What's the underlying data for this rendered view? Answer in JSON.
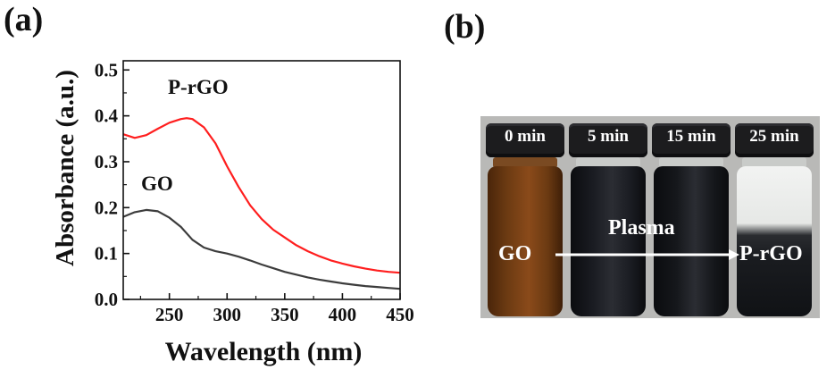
{
  "panel_a": {
    "label": "(a)",
    "chart_data": {
      "type": "line",
      "xlabel": "Wavelength (nm)",
      "ylabel": "Absorbance (a.u.)",
      "xlim": [
        210,
        450
      ],
      "ylim": [
        0,
        0.52
      ],
      "x_ticks": [
        "250",
        "300",
        "350",
        "400",
        "450"
      ],
      "y_ticks": [
        "0.0",
        "0.1",
        "0.2",
        "0.3",
        "0.4",
        "0.5"
      ],
      "grid": false,
      "series": [
        {
          "name": "P-rGO",
          "color": "#ff1e1e",
          "x": [
            210,
            220,
            230,
            240,
            250,
            260,
            265,
            270,
            280,
            290,
            300,
            310,
            320,
            330,
            340,
            350,
            360,
            370,
            380,
            390,
            400,
            410,
            420,
            430,
            440,
            450
          ],
          "y": [
            0.36,
            0.352,
            0.358,
            0.372,
            0.385,
            0.393,
            0.395,
            0.393,
            0.375,
            0.34,
            0.29,
            0.245,
            0.205,
            0.175,
            0.152,
            0.135,
            0.118,
            0.105,
            0.094,
            0.085,
            0.078,
            0.072,
            0.067,
            0.063,
            0.06,
            0.058
          ]
        },
        {
          "name": "GO",
          "color": "#3c3c3c",
          "x": [
            210,
            220,
            230,
            240,
            250,
            260,
            270,
            280,
            290,
            300,
            310,
            320,
            330,
            340,
            350,
            360,
            370,
            380,
            390,
            400,
            410,
            420,
            430,
            440,
            450
          ],
          "y": [
            0.18,
            0.19,
            0.195,
            0.192,
            0.178,
            0.158,
            0.13,
            0.113,
            0.105,
            0.1,
            0.093,
            0.085,
            0.076,
            0.068,
            0.06,
            0.054,
            0.048,
            0.043,
            0.039,
            0.035,
            0.032,
            0.029,
            0.027,
            0.025,
            0.023
          ]
        }
      ]
    }
  },
  "panel_b": {
    "label": "(b)",
    "vials": [
      {
        "time": "0 min",
        "liquid": "#6b3a12"
      },
      {
        "time": "5 min",
        "liquid": "#1a1c22"
      },
      {
        "time": "15 min",
        "liquid": "#15171b"
      },
      {
        "time": "25 min",
        "liquid": "#1a1c20"
      }
    ],
    "left_label": "GO",
    "arrow_label": "Plasma",
    "right_label": "P-rGO"
  }
}
